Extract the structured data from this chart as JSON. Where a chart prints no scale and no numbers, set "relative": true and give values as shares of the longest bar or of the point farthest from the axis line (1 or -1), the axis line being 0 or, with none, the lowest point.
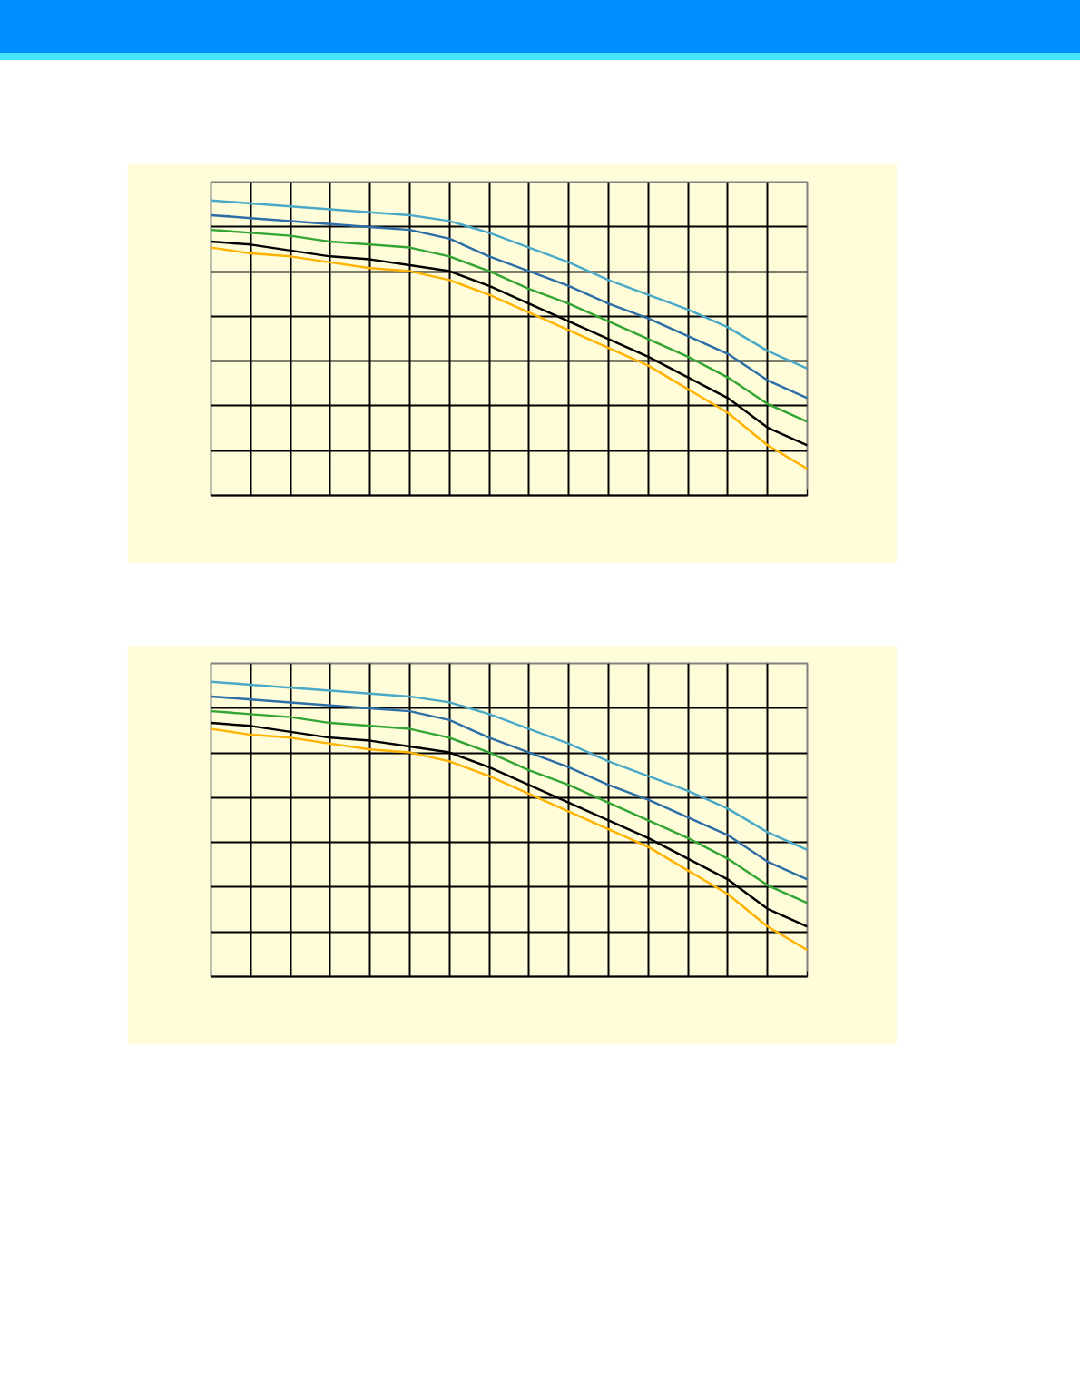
{
  "chart_data": [
    {
      "type": "line",
      "relative": true,
      "grid": true,
      "categories": [
        null,
        null,
        null,
        null,
        null,
        null,
        null,
        null,
        null,
        null,
        null,
        null,
        null,
        null,
        null,
        null
      ],
      "series": [
        {
          "color": "#ffb300",
          "values": [
            0.84,
            0.82,
            0.81,
            0.79,
            0.77,
            0.76,
            0.73,
            0.68,
            0.62,
            0.56,
            0.5,
            0.44,
            0.36,
            0.28,
            0.17,
            0.09
          ]
        },
        {
          "color": "#000000",
          "values": [
            0.86,
            0.85,
            0.83,
            0.81,
            0.8,
            0.78,
            0.76,
            0.71,
            0.65,
            0.59,
            0.53,
            0.47,
            0.4,
            0.33,
            0.23,
            0.17
          ]
        },
        {
          "color": "#33a532",
          "values": [
            0.9,
            0.89,
            0.88,
            0.86,
            0.85,
            0.84,
            0.81,
            0.76,
            0.7,
            0.65,
            0.59,
            0.53,
            0.47,
            0.4,
            0.31,
            0.25
          ]
        },
        {
          "color": "#2e6ea6",
          "values": [
            0.95,
            0.94,
            0.93,
            0.92,
            0.91,
            0.9,
            0.87,
            0.81,
            0.76,
            0.71,
            0.65,
            0.6,
            0.54,
            0.48,
            0.39,
            0.33
          ]
        },
        {
          "color": "#4aa8c8",
          "values": [
            1,
            0.99,
            0.98,
            0.97,
            0.96,
            0.95,
            0.93,
            0.89,
            0.84,
            0.79,
            0.73,
            0.68,
            0.63,
            0.57,
            0.49,
            0.43
          ]
        }
      ]
    },
    {
      "type": "line",
      "relative": true,
      "grid": true,
      "categories": [
        null,
        null,
        null,
        null,
        null,
        null,
        null,
        null,
        null,
        null,
        null,
        null,
        null,
        null,
        null,
        null
      ],
      "series": [
        {
          "color": "#ffb300",
          "values": [
            0.84,
            0.82,
            0.81,
            0.79,
            0.77,
            0.76,
            0.73,
            0.68,
            0.62,
            0.56,
            0.5,
            0.44,
            0.36,
            0.28,
            0.17,
            0.09
          ]
        },
        {
          "color": "#000000",
          "values": [
            0.86,
            0.85,
            0.83,
            0.81,
            0.8,
            0.78,
            0.76,
            0.71,
            0.65,
            0.59,
            0.53,
            0.47,
            0.4,
            0.33,
            0.23,
            0.17
          ]
        },
        {
          "color": "#33a532",
          "values": [
            0.9,
            0.89,
            0.88,
            0.86,
            0.85,
            0.84,
            0.81,
            0.76,
            0.7,
            0.65,
            0.59,
            0.53,
            0.47,
            0.4,
            0.31,
            0.25
          ]
        },
        {
          "color": "#2e6ea6",
          "values": [
            0.95,
            0.94,
            0.93,
            0.92,
            0.91,
            0.9,
            0.87,
            0.81,
            0.76,
            0.71,
            0.65,
            0.6,
            0.54,
            0.48,
            0.39,
            0.33
          ]
        },
        {
          "color": "#4aa8c8",
          "values": [
            1,
            0.99,
            0.98,
            0.97,
            0.96,
            0.95,
            0.93,
            0.89,
            0.84,
            0.79,
            0.73,
            0.68,
            0.63,
            0.57,
            0.49,
            0.43
          ]
        }
      ]
    }
  ]
}
